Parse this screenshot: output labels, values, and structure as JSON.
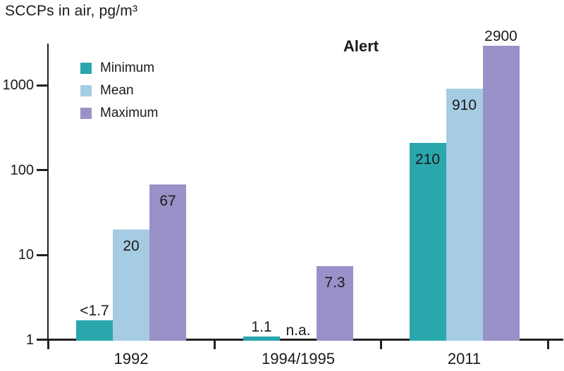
{
  "chart_data": {
    "type": "bar",
    "title": "SCCPs in air, pg/m³",
    "annotation": "Alert",
    "scale": "log",
    "grid": false,
    "legend_position": "top-left",
    "categories": [
      "1992",
      "1994/1995",
      "2011"
    ],
    "series": [
      {
        "name": "Minimum",
        "color": "#29a7ad",
        "points": [
          {
            "value": 1.7,
            "label": "<1.7",
            "label_pos": "above"
          },
          {
            "value": 1.1,
            "label": "1.1",
            "label_pos": "above"
          },
          {
            "value": 210,
            "label": "210",
            "label_pos": "inside"
          }
        ]
      },
      {
        "name": "Mean",
        "color": "#a6cce4",
        "points": [
          {
            "value": 20,
            "label": "20",
            "label_pos": "inside"
          },
          {
            "value": null,
            "label": "n.a.",
            "label_pos": "above"
          },
          {
            "value": 910,
            "label": "910",
            "label_pos": "inside"
          }
        ]
      },
      {
        "name": "Maximum",
        "color": "#9a91c8",
        "points": [
          {
            "value": 67,
            "label": "67",
            "label_pos": "inside"
          },
          {
            "value": 7.3,
            "label": "7.3",
            "label_pos": "inside"
          },
          {
            "value": 2900,
            "label": "2900",
            "label_pos": "above"
          }
        ]
      }
    ],
    "y_axis": {
      "ticks": [
        1,
        10,
        100,
        1000
      ],
      "ylim": [
        1,
        3500
      ]
    },
    "colors": {
      "text": "#1a1a1a",
      "axis": "#231f20",
      "background": "#ffffff"
    }
  }
}
